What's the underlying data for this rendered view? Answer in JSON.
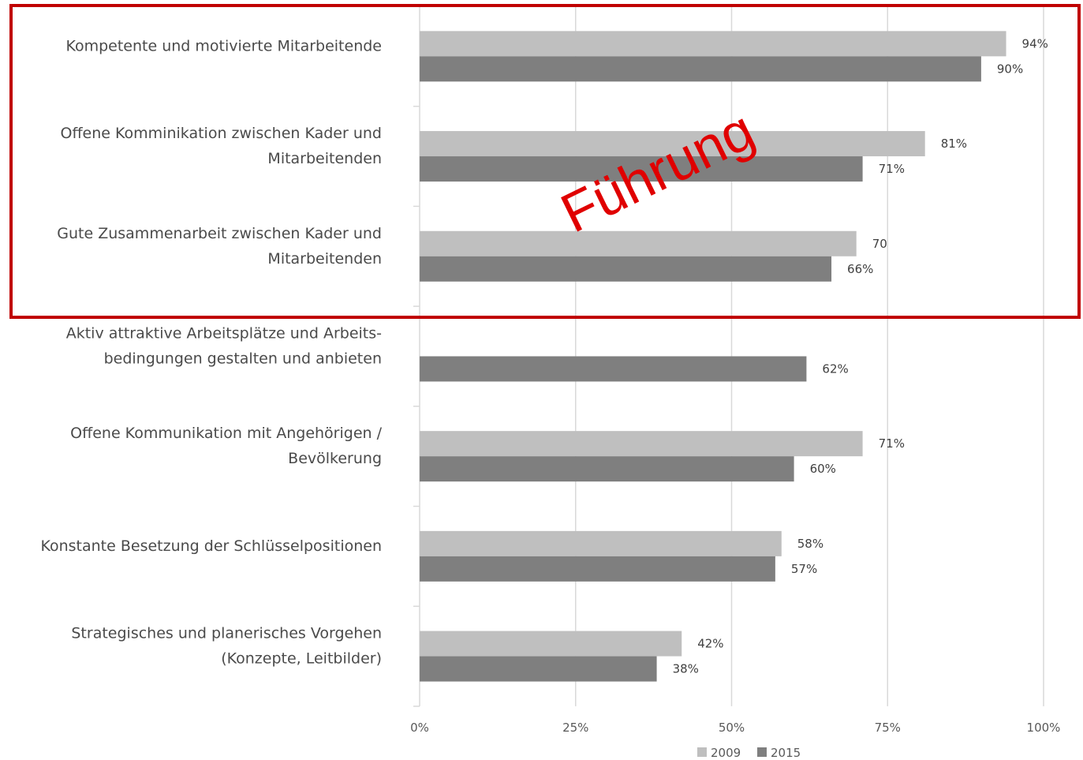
{
  "chart_data": {
    "type": "bar",
    "orientation": "horizontal",
    "categories": [
      [
        "Kompetente und motivierte Mitarbeitende"
      ],
      [
        "Offene Komminikation zwischen Kader und",
        "Mitarbeitenden"
      ],
      [
        "Gute Zusammenarbeit zwischen Kader und",
        "Mitarbeitenden"
      ],
      [
        "Aktiv attraktive Arbeitsplätze und Arbeits-",
        "bedingungen gestalten und anbieten"
      ],
      [
        "Offene Kommunikation mit Angehörigen /",
        "Bevölkerung"
      ],
      [
        "Konstante Besetzung der Schlüsselpositionen"
      ],
      [
        "Strategisches und planerisches Vorgehen",
        "(Konzepte, Leitbilder)"
      ]
    ],
    "series": [
      {
        "name": "2009",
        "color": "#bfbfbf",
        "values": [
          94,
          81,
          70,
          null,
          71,
          58,
          42
        ],
        "labels": [
          "94%",
          "81%",
          "70",
          "",
          "71%",
          "58%",
          "42%"
        ]
      },
      {
        "name": "2015",
        "color": "#7f7f7f",
        "values": [
          90,
          71,
          66,
          62,
          60,
          57,
          38
        ],
        "labels": [
          "90%",
          "71%",
          "66%",
          "62%",
          "60%",
          "57%",
          "38%"
        ]
      }
    ],
    "xlim": [
      0,
      100
    ],
    "xticks": [
      0,
      25,
      50,
      75,
      100
    ],
    "xtick_labels": [
      "0%",
      "25%",
      "50%",
      "75%",
      "100%"
    ],
    "grid": true,
    "legend_position": "bottom"
  },
  "annotation": {
    "text": "Führung",
    "color": "#e00000",
    "box_color": "#c00000"
  }
}
